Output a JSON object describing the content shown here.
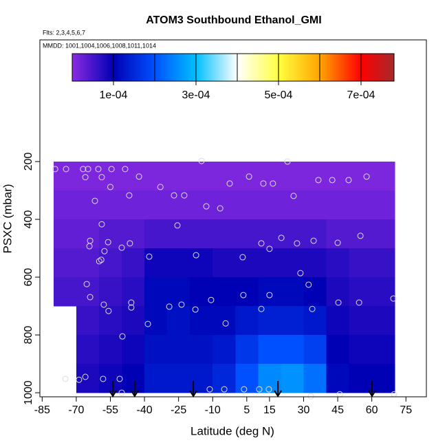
{
  "chart_data": {
    "type": "heatmap",
    "title": "ATOM3 Southbound Ethanol_GMI",
    "notes": [
      "Flts: 2,3,4,5,6,7",
      "MMDD: 1001,1004,1006,1008,1011,1014"
    ],
    "x_label": "Latitude (deg N)",
    "y_label": "PSXC (mbar)",
    "xlim": [
      -86,
      84
    ],
    "ylim": [
      1014,
      -221
    ],
    "xticks": [
      -85,
      -70,
      -55,
      -40,
      -25,
      -10,
      5,
      15,
      30,
      45,
      60,
      75
    ],
    "yticks": [
      200,
      400,
      600,
      800,
      1000
    ],
    "lat_edges": [
      -80,
      -70,
      -60,
      -50,
      -40,
      -30,
      -20,
      -10,
      0,
      10,
      20,
      30,
      40,
      50,
      60,
      70
    ],
    "p_edges": [
      200,
      300,
      400,
      500,
      600,
      700,
      800,
      900,
      1000
    ],
    "values": [
      [
        1e-05,
        1e-05,
        1e-05,
        1e-05,
        1e-05,
        1e-05,
        1e-05,
        1e-05,
        1e-05,
        1e-05,
        1e-05,
        1e-05,
        1e-05,
        1e-05,
        1e-05
      ],
      [
        2e-05,
        2e-05,
        2e-05,
        2e-05,
        2e-05,
        2e-05,
        2e-05,
        2e-05,
        2e-05,
        2e-05,
        2e-05,
        2e-05,
        2e-05,
        2e-05,
        2e-05
      ],
      [
        3e-05,
        3e-05,
        4e-05,
        4e-05,
        5e-05,
        5e-05,
        5e-05,
        5e-05,
        5e-05,
        5e-05,
        5e-05,
        5e-05,
        4e-05,
        4e-05,
        4e-05
      ],
      [
        4e-05,
        4e-05,
        5e-05,
        6e-05,
        9e-05,
        9e-05,
        9e-05,
        8e-05,
        8e-05,
        8e-05,
        8e-05,
        8e-05,
        7e-05,
        6e-05,
        6e-05
      ],
      [
        5e-05,
        5e-05,
        6e-05,
        7e-05,
        0.00011,
        0.00011,
        0.0001,
        0.0001,
        0.0001,
        0.00011,
        0.00011,
        0.0001,
        8e-05,
        7e-05,
        7e-05
      ],
      [
        null,
        6e-05,
        7e-05,
        8e-05,
        0.00011,
        0.00012,
        0.00011,
        0.00011,
        0.00013,
        0.00014,
        0.00014,
        0.00013,
        9e-05,
        8e-05,
        8e-05
      ],
      [
        null,
        7e-05,
        8e-05,
        9e-05,
        0.00012,
        0.00012,
        0.00012,
        0.00013,
        0.00017,
        0.0002,
        0.0002,
        0.00018,
        0.0001,
        9e-05,
        9e-05
      ],
      [
        null,
        8e-05,
        9e-05,
        0.0001,
        0.00013,
        0.00013,
        0.00013,
        0.00015,
        0.0002,
        0.00025,
        0.00026,
        0.00023,
        0.00011,
        0.0001,
        0.0001
      ]
    ],
    "colorbar": {
      "lim": [
        0,
        0.00078
      ],
      "stops": [
        0,
        0.0001,
        0.0002,
        0.0003,
        0.0004,
        0.0005,
        0.0006,
        0.0007,
        0.00078
      ],
      "colors": [
        "#8a2be2",
        "#0000b4",
        "#0050ff",
        "#00bfff",
        "#ffffff",
        "#ffff40",
        "#ffa500",
        "#ff0000",
        "#a52a2a"
      ],
      "ticks": [
        {
          "value": 0.0001,
          "label": "1e-04"
        },
        {
          "value": 0.0003,
          "label": "3e-04"
        },
        {
          "value": 0.0005,
          "label": "5e-04"
        },
        {
          "value": 0.0007,
          "label": "7e-04"
        }
      ]
    },
    "points": {
      "color": "#dddddd",
      "lat": [
        -79.3,
        -74.5,
        -67,
        -64.8,
        -60.3,
        -54.5,
        -48.5,
        -66,
        -58.8,
        -42.4,
        -55,
        -33,
        -61.8,
        -46.7,
        -27,
        -22.5,
        -12.8,
        -6.7,
        -2.5,
        6,
        12.3,
        16.5,
        25.6,
        36.5,
        42.6,
        49.8,
        57.7,
        22.9,
        -14.9,
        -58.8,
        -25.5,
        -63.9,
        -64.2,
        -56,
        -46.4,
        -50,
        -57.6,
        -59,
        -59.9,
        -37.9,
        -17.3,
        3.2,
        11.4,
        20.2,
        27.1,
        34.4,
        45,
        55,
        15,
        28.6,
        32.2,
        -65.4,
        -63.9,
        -57.9,
        -55.8,
        -45.8,
        -45.8,
        -29.1,
        -23.7,
        -17.6,
        -10.7,
        3.5,
        15,
        11.4,
        33.8,
        45.3,
        54.4,
        69.5,
        -38.5,
        -4.3,
        -49.7,
        -74.8,
        -68.8,
        -66,
        -58.2,
        -50.9,
        -50,
        -11.3,
        -4.9,
        3.8,
        10.5,
        14.7,
        33.2,
        45.9,
        69.8
      ],
      "p": [
        226,
        226,
        226,
        226,
        226,
        226,
        226,
        254,
        254,
        252,
        288,
        288,
        336,
        317,
        317,
        317,
        355,
        362,
        276,
        252,
        276,
        276,
        319,
        264,
        264,
        264,
        252,
        200,
        198,
        417,
        421,
        474,
        493,
        479,
        483,
        498,
        510,
        540,
        545,
        529,
        524,
        531,
        483,
        464,
        483,
        474,
        481,
        457,
        502,
        586,
        626,
        624,
        669,
        695,
        717,
        688,
        705,
        702,
        695,
        712,
        679,
        662,
        662,
        710,
        710,
        688,
        688,
        674,
        762,
        760,
        805,
        952,
        955,
        945,
        952,
        952,
        1000,
        988,
        988,
        988,
        988,
        988,
        1012,
        1005,
        1005
      ]
    },
    "arrows_lat": [
      -53.9,
      -44.3,
      -18.5,
      18.7,
      60.1
    ]
  }
}
